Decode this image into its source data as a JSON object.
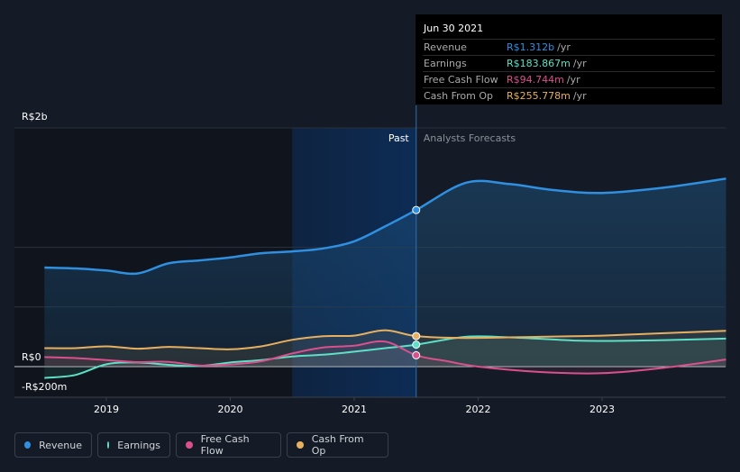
{
  "colors": {
    "revenue": "#2f8fe0",
    "earnings": "#5ce0c6",
    "fcf": "#d9508c",
    "cfo": "#e6b060"
  },
  "tooltip": {
    "date": "Jun 30 2021",
    "rows": [
      {
        "label": "Revenue",
        "value": "R$1.312b",
        "unit": "/yr"
      },
      {
        "label": "Earnings",
        "value": "R$183.867m",
        "unit": "/yr"
      },
      {
        "label": "Free Cash Flow",
        "value": "R$94.744m",
        "unit": "/yr"
      },
      {
        "label": "Cash From Op",
        "value": "R$255.778m",
        "unit": "/yr"
      }
    ]
  },
  "legend": [
    {
      "label": "Revenue",
      "color": "#2f8fe0"
    },
    {
      "label": "Earnings",
      "color": "#5ce0c6"
    },
    {
      "label": "Free Cash Flow",
      "color": "#d9508c"
    },
    {
      "label": "Cash From Op",
      "color": "#e6b060"
    }
  ],
  "chart_data": {
    "type": "line",
    "y_unit": "R$ millions",
    "ylim": [
      -270,
      2050
    ],
    "xlim": [
      2018.35,
      2024.0
    ],
    "y_tick_labels": [
      {
        "value": 2000,
        "label": "R$2b"
      },
      {
        "value": 0,
        "label": "R$0"
      },
      {
        "value": -200,
        "label": "-R$200m"
      }
    ],
    "x_tick_labels": [
      {
        "value": 2019.0,
        "label": "2019"
      },
      {
        "value": 2020.0,
        "label": "2020"
      },
      {
        "value": 2021.0,
        "label": "2021"
      },
      {
        "value": 2022.0,
        "label": "2022"
      },
      {
        "value": 2023.0,
        "label": "2023"
      }
    ],
    "past_label": "Past",
    "forecast_label": "Analysts Forecasts",
    "highlight_start": 2020.5,
    "divider_x": 2021.5,
    "series": [
      {
        "name": "Revenue",
        "color": "#2f8fe0",
        "points": [
          [
            2018.5,
            830
          ],
          [
            2018.75,
            823
          ],
          [
            2019.0,
            805
          ],
          [
            2019.25,
            780
          ],
          [
            2019.5,
            865
          ],
          [
            2019.75,
            890
          ],
          [
            2020.0,
            915
          ],
          [
            2020.25,
            950
          ],
          [
            2020.5,
            965
          ],
          [
            2020.75,
            990
          ],
          [
            2021.0,
            1050
          ],
          [
            2021.25,
            1175
          ],
          [
            2021.5,
            1312
          ],
          [
            2021.9,
            1540
          ],
          [
            2022.25,
            1530
          ],
          [
            2022.6,
            1480
          ],
          [
            2023.0,
            1455
          ],
          [
            2023.5,
            1500
          ],
          [
            2024.0,
            1575
          ]
        ]
      },
      {
        "name": "Earnings",
        "color": "#5ce0c6",
        "points": [
          [
            2018.5,
            -95
          ],
          [
            2018.75,
            -70
          ],
          [
            2019.0,
            20
          ],
          [
            2019.25,
            35
          ],
          [
            2019.5,
            15
          ],
          [
            2019.75,
            5
          ],
          [
            2020.0,
            35
          ],
          [
            2020.25,
            55
          ],
          [
            2020.5,
            85
          ],
          [
            2020.75,
            100
          ],
          [
            2021.0,
            125
          ],
          [
            2021.25,
            155
          ],
          [
            2021.5,
            184
          ],
          [
            2021.9,
            250
          ],
          [
            2022.25,
            245
          ],
          [
            2022.75,
            220
          ],
          [
            2023.0,
            215
          ],
          [
            2023.5,
            222
          ],
          [
            2024.0,
            235
          ]
        ]
      },
      {
        "name": "Free Cash Flow",
        "color": "#d9508c",
        "points": [
          [
            2018.5,
            80
          ],
          [
            2018.75,
            72
          ],
          [
            2019.0,
            55
          ],
          [
            2019.25,
            38
          ],
          [
            2019.5,
            40
          ],
          [
            2019.75,
            10
          ],
          [
            2020.0,
            18
          ],
          [
            2020.25,
            45
          ],
          [
            2020.5,
            110
          ],
          [
            2020.75,
            160
          ],
          [
            2021.0,
            175
          ],
          [
            2021.25,
            210
          ],
          [
            2021.5,
            95
          ],
          [
            2021.75,
            45
          ],
          [
            2022.0,
            0
          ],
          [
            2022.5,
            -45
          ],
          [
            2023.0,
            -55
          ],
          [
            2023.5,
            -10
          ],
          [
            2024.0,
            60
          ]
        ]
      },
      {
        "name": "Cash From Op",
        "color": "#e6b060",
        "points": [
          [
            2018.5,
            155
          ],
          [
            2018.75,
            155
          ],
          [
            2019.0,
            170
          ],
          [
            2019.25,
            150
          ],
          [
            2019.5,
            165
          ],
          [
            2019.75,
            155
          ],
          [
            2020.0,
            145
          ],
          [
            2020.25,
            170
          ],
          [
            2020.5,
            225
          ],
          [
            2020.75,
            255
          ],
          [
            2021.0,
            260
          ],
          [
            2021.25,
            305
          ],
          [
            2021.5,
            256
          ],
          [
            2021.9,
            240
          ],
          [
            2022.5,
            250
          ],
          [
            2023.0,
            260
          ],
          [
            2023.5,
            280
          ],
          [
            2024.0,
            300
          ]
        ]
      }
    ],
    "markers": [
      {
        "series": "Revenue",
        "x": 2021.5,
        "y": 1312
      },
      {
        "series": "Earnings",
        "x": 2021.5,
        "y": 184
      },
      {
        "series": "Free Cash Flow",
        "x": 2021.5,
        "y": 95
      },
      {
        "series": "Cash From Op",
        "x": 2021.5,
        "y": 256
      }
    ]
  }
}
